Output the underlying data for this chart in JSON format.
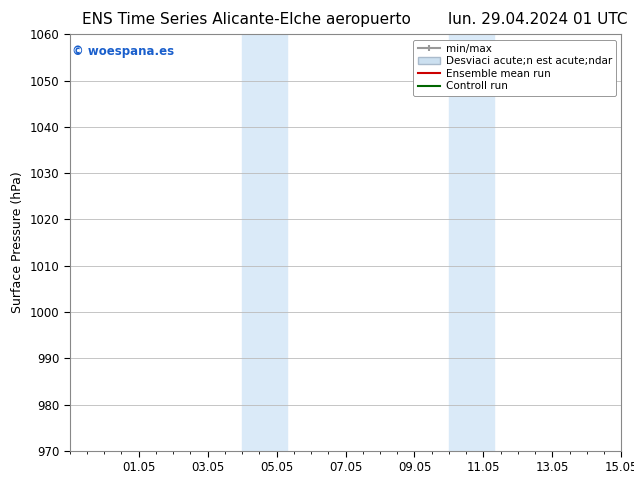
{
  "title_left": "ENS Time Series Alicante-Elche aeropuerto",
  "title_right": "lun. 29.04.2024 01 UTC",
  "ylabel": "Surface Pressure (hPa)",
  "ylim": [
    970,
    1060
  ],
  "yticks": [
    970,
    980,
    990,
    1000,
    1010,
    1020,
    1030,
    1040,
    1050,
    1060
  ],
  "xtick_positions": [
    2,
    4,
    6,
    8,
    10,
    12,
    14,
    16
  ],
  "xtick_labels": [
    "01.05",
    "03.05",
    "05.05",
    "07.05",
    "09.05",
    "11.05",
    "13.05",
    "15.05"
  ],
  "xlim": [
    0,
    16
  ],
  "shaded_bands": [
    {
      "xstart": 5.0,
      "xend": 6.3
    },
    {
      "xstart": 11.0,
      "xend": 12.3
    }
  ],
  "shaded_color": "#daeaf8",
  "watermark": "© woespana.es",
  "watermark_color": "#1a5fcc",
  "legend_entries": [
    {
      "label": "min/max",
      "color": "#999999",
      "lw": 1.5
    },
    {
      "label": "Desviaci acute;n est acute;ndar",
      "color": "#cce0f0",
      "lw": 6
    },
    {
      "label": "Ensemble mean run",
      "color": "#cc0000",
      "lw": 1.5
    },
    {
      "label": "Controll run",
      "color": "#006600",
      "lw": 1.5
    }
  ],
  "bg_color": "#ffffff",
  "grid_color": "#bbbbbb",
  "title_fontsize": 11,
  "axis_fontsize": 9,
  "tick_fontsize": 8.5,
  "legend_fontsize": 7.5
}
